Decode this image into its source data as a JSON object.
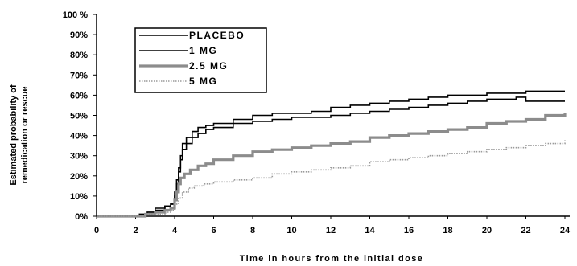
{
  "chart_data": {
    "type": "line",
    "title": "",
    "xlabel": "Time in hours from the initial dose",
    "ylabel_lines": [
      "Estimated probability of",
      "remedication or rescue"
    ],
    "xlim": [
      0,
      24
    ],
    "ylim": [
      0,
      100
    ],
    "x_ticks": [
      0,
      2,
      4,
      6,
      8,
      10,
      12,
      14,
      16,
      18,
      20,
      22,
      24
    ],
    "y_ticks": [
      0,
      10,
      20,
      30,
      40,
      50,
      60,
      70,
      80,
      90,
      100
    ],
    "y_tick_labels": [
      "0%",
      "10%",
      "20%",
      "30%",
      "40%",
      "50%",
      "60%",
      "70%",
      "80%",
      "90%",
      "100 %"
    ],
    "grid": false,
    "legend_position": "top-left",
    "series": [
      {
        "name": "PLACEBO",
        "color": "#000000",
        "style": "solid",
        "x": [
          0,
          1.8,
          2.2,
          2.6,
          3.0,
          3.5,
          3.8,
          4.0,
          4.1,
          4.2,
          4.3,
          4.4,
          4.6,
          4.9,
          5.2,
          5.6,
          6.0,
          7.0,
          8.0,
          9.0,
          10.0,
          11.0,
          12.0,
          13.0,
          14.0,
          15.0,
          16.0,
          17.0,
          18.0,
          19.0,
          20.0,
          21.0,
          22.0,
          23.0,
          24.0
        ],
        "y": [
          0,
          0,
          1,
          2,
          4,
          5,
          6,
          12,
          18,
          24,
          30,
          36,
          39,
          42,
          44,
          45,
          46,
          48,
          50,
          51,
          51,
          52,
          54,
          55,
          56,
          57,
          58,
          59,
          60,
          60,
          61,
          61,
          62,
          62,
          62
        ]
      },
      {
        "name": "1 MG",
        "color": "#000000",
        "style": "solid",
        "x": [
          0,
          1.8,
          2.2,
          2.6,
          3.0,
          3.5,
          3.8,
          4.0,
          4.1,
          4.2,
          4.3,
          4.4,
          4.6,
          4.9,
          5.2,
          5.6,
          6.0,
          7.0,
          8.0,
          9.0,
          10.0,
          11.0,
          12.0,
          13.0,
          14.0,
          15.0,
          16.0,
          17.0,
          18.0,
          19.0,
          20.0,
          21.0,
          21.5,
          22.0,
          23.0,
          24.0
        ],
        "y": [
          0,
          0,
          1,
          2,
          3,
          5,
          6,
          10,
          16,
          22,
          28,
          33,
          36,
          39,
          41,
          43,
          44,
          46,
          47,
          48,
          49,
          49,
          50,
          51,
          52,
          53,
          54,
          55,
          56,
          57,
          58,
          58,
          59,
          57,
          57,
          57
        ]
      },
      {
        "name": "2.5 MG",
        "color": "#8c8c8c",
        "style": "thick",
        "x": [
          0,
          2.0,
          2.5,
          3.0,
          3.5,
          3.8,
          4.0,
          4.1,
          4.2,
          4.3,
          4.5,
          4.8,
          5.2,
          5.6,
          6.0,
          7.0,
          8.0,
          9.0,
          10.0,
          11.0,
          12.0,
          13.0,
          14.0,
          15.0,
          16.0,
          17.0,
          18.0,
          19.0,
          20.0,
          21.0,
          22.0,
          23.0,
          24.0
        ],
        "y": [
          0,
          0,
          1,
          2,
          3,
          4,
          8,
          12,
          16,
          19,
          21,
          23,
          25,
          26,
          28,
          30,
          32,
          33,
          34,
          35,
          36,
          37,
          39,
          40,
          41,
          42,
          43,
          44,
          46,
          47,
          48,
          50,
          51
        ]
      },
      {
        "name": "5 MG",
        "color": "#9a9a9a",
        "style": "dotted",
        "x": [
          0,
          2.0,
          2.5,
          3.0,
          3.5,
          3.8,
          4.0,
          4.2,
          4.4,
          4.7,
          5.0,
          5.5,
          6.0,
          7.0,
          8.0,
          9.0,
          10.0,
          11.0,
          12.0,
          13.0,
          14.0,
          15.0,
          16.0,
          17.0,
          18.0,
          19.0,
          20.0,
          21.0,
          22.0,
          23.0,
          24.0
        ],
        "y": [
          0,
          0,
          1,
          1,
          2,
          3,
          6,
          9,
          12,
          14,
          15,
          16,
          17,
          18,
          19,
          21,
          22,
          23,
          24,
          25,
          27,
          28,
          29,
          30,
          31,
          32,
          33,
          34,
          35,
          36,
          38
        ]
      }
    ]
  }
}
